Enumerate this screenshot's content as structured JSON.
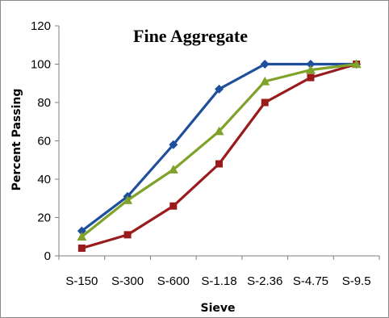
{
  "chart_data": {
    "type": "line",
    "title": "Fine Aggregate",
    "xlabel": "Sieve",
    "ylabel": "Percent Passing",
    "categories": [
      "S-150",
      "S-300",
      "S-600",
      "S-1.18",
      "S-2.36",
      "S-4.75",
      "S-9.5"
    ],
    "ylim": [
      0,
      120
    ],
    "yticks": [
      "0",
      "20",
      "40",
      "60",
      "80",
      "100",
      "120"
    ],
    "grid": false,
    "legend": "none",
    "series": [
      {
        "color": "#1F4E9C",
        "marker": "diamond",
        "values": [
          13,
          31,
          58,
          87,
          100,
          100,
          100
        ]
      },
      {
        "color": "#9A1B1B",
        "marker": "square",
        "values": [
          4,
          11,
          26,
          48,
          80,
          93,
          100
        ]
      },
      {
        "color": "#7FA32A",
        "marker": "triangle",
        "values": [
          10,
          29,
          45,
          65,
          91,
          97,
          100
        ]
      }
    ]
  }
}
